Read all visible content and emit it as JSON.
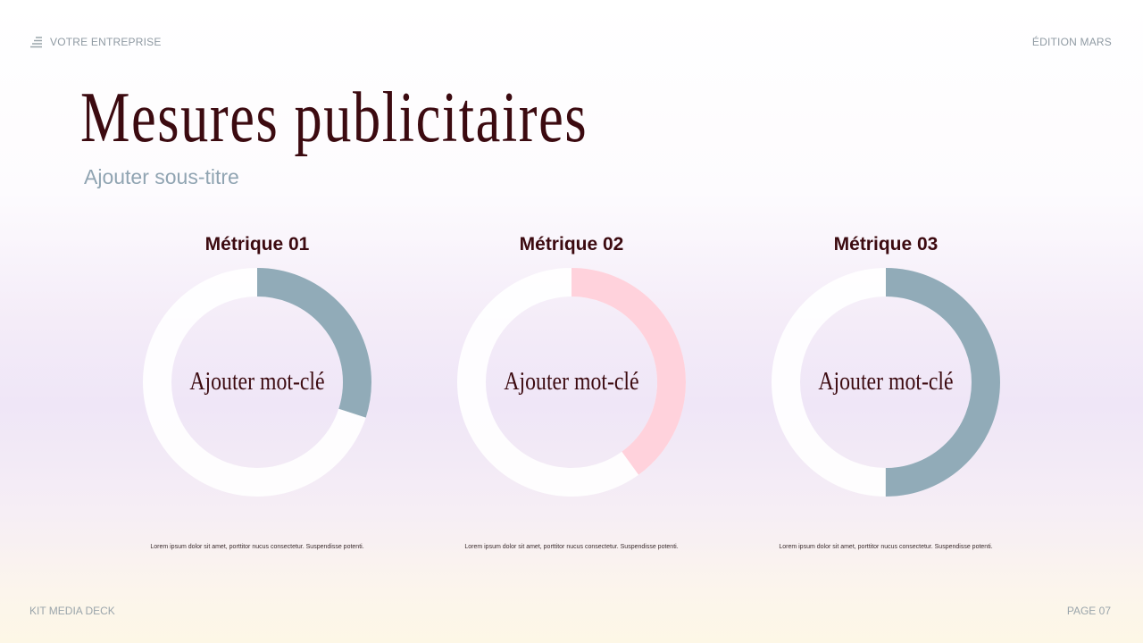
{
  "header": {
    "company": "VOTRE ENTREPRISE",
    "company_icon": "stack-lines-icon",
    "edition": "ÉDITION MARS"
  },
  "title": "Mesures publicitaires",
  "subtitle": "Ajouter sous-titre",
  "metrics": [
    {
      "title": "Métrique 01",
      "center_label": "Ajouter mot-clé",
      "percent": 30,
      "color": "#91abb8",
      "description": "Lorem ipsum dolor sit amet, porttitor nucus consectetur. Suspendisse potenti."
    },
    {
      "title": "Métrique 02",
      "center_label": "Ajouter mot-clé",
      "percent": 40,
      "color": "#ffd2dc",
      "description": "Lorem ipsum dolor sit amet, porttitor nucus consectetur. Suspendisse potenti."
    },
    {
      "title": "Métrique 03",
      "center_label": "Ajouter mot-clé",
      "percent": 50,
      "color": "#91abb8",
      "description": "Lorem ipsum dolor sit amet, porttitor nucus consectetur. Suspendisse potenti."
    }
  ],
  "footer": {
    "left": "KIT MEDIA DECK",
    "right": "PAGE 07"
  },
  "colors": {
    "title": "#3c0a10",
    "subtitle": "#90a4b2",
    "track": "#ffffff",
    "slate": "#91abb8",
    "pink": "#ffd2dc"
  },
  "chart_data": {
    "type": "pie",
    "subtype": "donut",
    "title": "Mesures publicitaires",
    "subtitle": "Ajouter sous-titre",
    "categories": [
      "Métrique 01",
      "Métrique 02",
      "Métrique 03"
    ],
    "values": [
      30,
      40,
      50
    ],
    "unit": "%",
    "center_labels": [
      "Ajouter mot-clé",
      "Ajouter mot-clé",
      "Ajouter mot-clé"
    ],
    "colors": [
      "#91abb8",
      "#ffd2dc",
      "#91abb8"
    ]
  }
}
